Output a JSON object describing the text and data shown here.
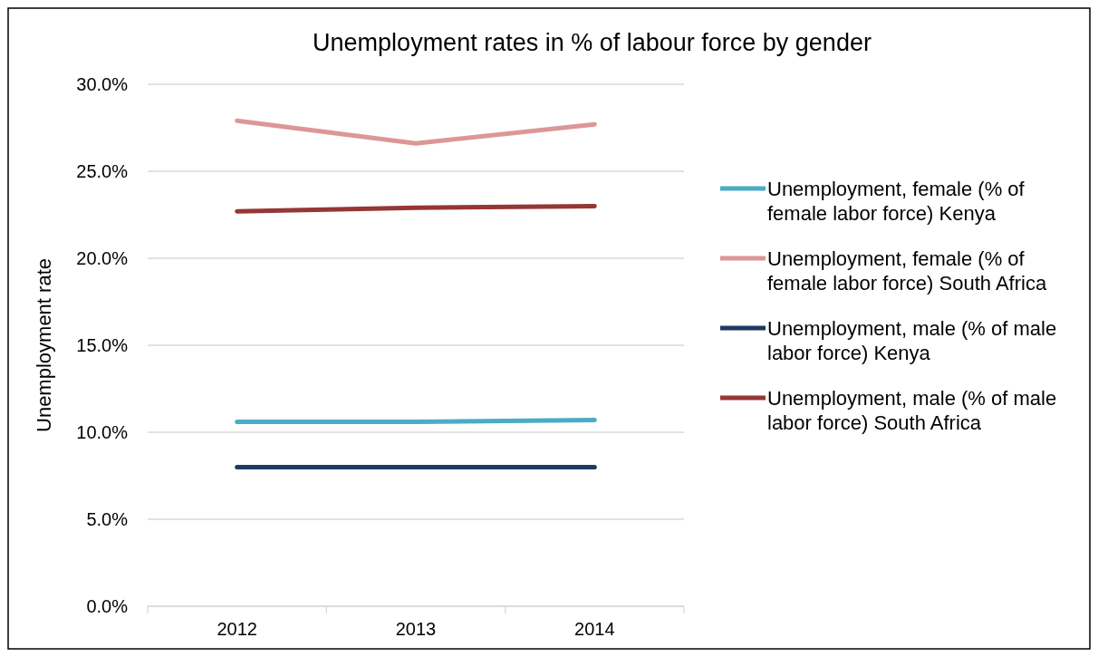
{
  "chart_data": {
    "type": "line",
    "title": "Unemployment rates in % of labour force by gender",
    "ylabel": "Unemployment rate",
    "categories": [
      "2012",
      "2013",
      "2014"
    ],
    "series": [
      {
        "name": "Unemployment, female (% of female labor force) Kenya",
        "color": "#4bacc6",
        "values": [
          10.6,
          10.6,
          10.7
        ]
      },
      {
        "name": "Unemployment, female (% of female labor force) South Africa",
        "color": "#dc9796",
        "values": [
          27.9,
          26.6,
          27.7
        ]
      },
      {
        "name": "Unemployment, male (% of male labor force) Kenya",
        "color": "#1f3a60",
        "values": [
          8.0,
          8.0,
          8.0
        ]
      },
      {
        "name": "Unemployment, male (% of male labor force) South Africa",
        "color": "#953735",
        "values": [
          22.7,
          22.9,
          23.0
        ]
      }
    ],
    "ylim": [
      0,
      30
    ],
    "yticks": [
      {
        "value": 0,
        "label": "0.0%"
      },
      {
        "value": 5,
        "label": "5.0%"
      },
      {
        "value": 10,
        "label": "10.0%"
      },
      {
        "value": 15,
        "label": "15.0%"
      },
      {
        "value": 20,
        "label": "20.0%"
      },
      {
        "value": 25,
        "label": "25.0%"
      },
      {
        "value": 30,
        "label": "30.0%"
      }
    ],
    "grid": "y",
    "legend": "right",
    "marker": "none",
    "line_style": "solid"
  }
}
